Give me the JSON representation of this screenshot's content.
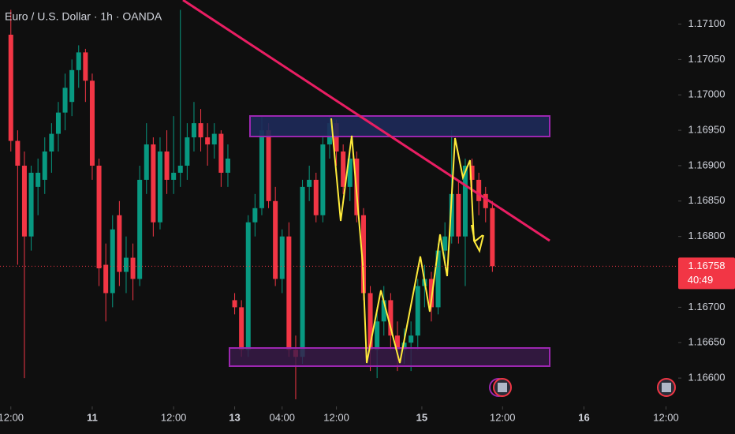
{
  "chart_data": {
    "type": "candlestick",
    "title": "Euro / U.S. Dollar · 1h · OANDA",
    "up_color": "#089981",
    "down_color": "#f23645",
    "open": [
      1.17085,
      1.16935,
      1.169,
      1.168,
      1.1687,
      1.1688,
      1.1692,
      1.16945,
      1.16975,
      1.1699,
      1.17035,
      1.1706,
      1.1702,
      1.169,
      1.1676,
      1.1672,
      1.1683,
      1.1675,
      1.1677,
      1.1674,
      1.1688,
      1.1693,
      1.1682,
      1.1692,
      1.1688,
      1.1689,
      1.169,
      1.1694,
      1.1696,
      1.1694,
      1.1693,
      1.16945,
      1.1689,
      1.1671,
      1.167,
      1.1664,
      1.1682,
      1.1684,
      1.1695,
      1.1685,
      1.1674,
      1.168,
      1.1664,
      1.1663,
      1.1687,
      1.1688,
      1.1683,
      1.1693,
      1.1696,
      1.1692,
      1.1687,
      1.1691,
      1.1683,
      1.1672,
      1.1664,
      1.1668,
      1.1671,
      1.1666,
      1.1664,
      1.1665,
      1.1666,
      1.1673,
      1.1674,
      1.167,
      1.1678,
      1.168,
      1.1686,
      1.168,
      1.169,
      1.1688,
      1.1686,
      1.1684
    ],
    "high": [
      1.1712,
      1.1695,
      1.1692,
      1.169,
      1.1691,
      1.1694,
      1.1696,
      1.1699,
      1.1703,
      1.1705,
      1.1707,
      1.17065,
      1.1703,
      1.1691,
      1.1679,
      1.1683,
      1.1685,
      1.168,
      1.1679,
      1.169,
      1.1696,
      1.1694,
      1.1694,
      1.1695,
      1.1697,
      1.1712,
      1.1696,
      1.1699,
      1.1698,
      1.1696,
      1.1696,
      1.1695,
      1.1693,
      1.1672,
      1.1671,
      1.1683,
      1.1686,
      1.1697,
      1.1696,
      1.1687,
      1.1681,
      1.1682,
      1.1666,
      1.1688,
      1.169,
      1.1689,
      1.1694,
      1.1697,
      1.16965,
      1.1693,
      1.1692,
      1.1692,
      1.1684,
      1.1673,
      1.167,
      1.1673,
      1.1672,
      1.1668,
      1.1667,
      1.1668,
      1.1674,
      1.1676,
      1.1675,
      1.1679,
      1.1682,
      1.1695,
      1.1688,
      1.1691,
      1.1691,
      1.1689,
      1.1687,
      1.1685
    ],
    "low": [
      1.1692,
      1.1676,
      1.166,
      1.1678,
      1.1683,
      1.1686,
      1.1689,
      1.1692,
      1.1695,
      1.1697,
      1.1701,
      1.1699,
      1.1688,
      1.1673,
      1.1668,
      1.167,
      1.1673,
      1.1672,
      1.1671,
      1.1673,
      1.1686,
      1.168,
      1.1681,
      1.1686,
      1.1686,
      1.1687,
      1.1688,
      1.1692,
      1.1692,
      1.169,
      1.1691,
      1.1687,
      1.1687,
      1.1669,
      1.1663,
      1.1663,
      1.168,
      1.1683,
      1.1684,
      1.1673,
      1.1672,
      1.1663,
      1.1657,
      1.1662,
      1.1685,
      1.1682,
      1.1682,
      1.1691,
      1.169,
      1.1686,
      1.1685,
      1.1682,
      1.1671,
      1.1661,
      1.166,
      1.1666,
      1.1664,
      1.1661,
      1.1662,
      1.1661,
      1.1664,
      1.167,
      1.1668,
      1.1669,
      1.1676,
      1.1679,
      1.1679,
      1.1673,
      1.1686,
      1.1683,
      1.1682,
      1.1675
    ],
    "close": [
      1.16935,
      1.169,
      1.168,
      1.1689,
      1.1689,
      1.1692,
      1.16945,
      1.16975,
      1.1701,
      1.17035,
      1.1706,
      1.1702,
      1.169,
      1.16755,
      1.1672,
      1.1681,
      1.1675,
      1.1677,
      1.1674,
      1.1688,
      1.1693,
      1.1682,
      1.1692,
      1.1688,
      1.1689,
      1.169,
      1.1694,
      1.1696,
      1.1694,
      1.1693,
      1.16945,
      1.1689,
      1.1691,
      1.167,
      1.1664,
      1.1682,
      1.1684,
      1.1695,
      1.1685,
      1.1674,
      1.168,
      1.1664,
      1.1663,
      1.1687,
      1.1688,
      1.1683,
      1.1693,
      1.1696,
      1.1692,
      1.1687,
      1.1691,
      1.1683,
      1.1672,
      1.1664,
      1.1668,
      1.1671,
      1.1666,
      1.1664,
      1.1665,
      1.1666,
      1.1673,
      1.1674,
      1.167,
      1.1678,
      1.168,
      1.1686,
      1.168,
      1.169,
      1.1688,
      1.1685,
      1.1684,
      1.16758
    ],
    "last_price": 1.16758,
    "countdown": "40:49",
    "xlim": [
      -1.6,
      98.4
    ],
    "ylim": [
      1.1656,
      1.17134
    ],
    "xticks": [
      {
        "value": 0,
        "label": "12:00"
      },
      {
        "value": 12,
        "label": "11"
      },
      {
        "value": 24,
        "label": "12:00"
      },
      {
        "value": 33,
        "label": "13"
      },
      {
        "value": 40,
        "label": "04:00"
      },
      {
        "value": 48,
        "label": "12:00"
      },
      {
        "value": 60.6,
        "label": "15"
      },
      {
        "value": 72.5,
        "label": "12:00"
      },
      {
        "value": 84.5,
        "label": "16"
      },
      {
        "value": 96.6,
        "label": "12:00"
      }
    ],
    "yticks": [
      {
        "value": 1.171,
        "label": "1.17100"
      },
      {
        "value": 1.1705,
        "label": "1.17050"
      },
      {
        "value": 1.17,
        "label": "1.17000"
      },
      {
        "value": 1.1695,
        "label": "1.16950"
      },
      {
        "value": 1.169,
        "label": "1.16900"
      },
      {
        "value": 1.1685,
        "label": "1.16850"
      },
      {
        "value": 1.168,
        "label": "1.16800"
      },
      {
        "value": 1.1675,
        "label": "1.16750"
      },
      {
        "value": 1.167,
        "label": "1.16700"
      },
      {
        "value": 1.1665,
        "label": "1.16650"
      },
      {
        "value": 1.166,
        "label": "1.16600"
      }
    ]
  }
}
